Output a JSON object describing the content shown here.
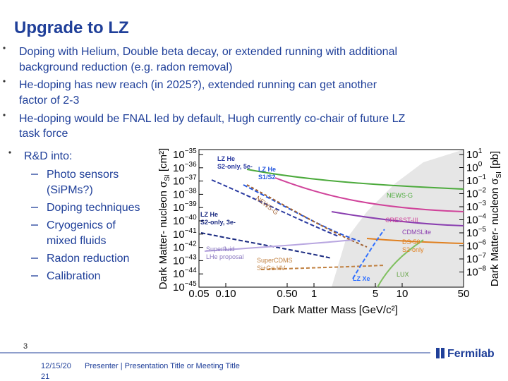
{
  "title": "Upgrade to LZ",
  "bullets": [
    [
      "Doping with Helium, Double beta decay, or extended running with additional",
      "background reduction (e.g. radon removal)"
    ],
    [
      "He-doping has new reach (in 2025?), extended running can get another",
      "factor of 2-3"
    ],
    [
      "He-doping would be FNAL led by default, Hugh currently co-chair of future LZ",
      "task force"
    ]
  ],
  "rd": {
    "heading": "R&D into:",
    "items": [
      [
        "Photo sensors",
        "(SiPMs?)"
      ],
      [
        "Doping techniques"
      ],
      [
        "Cryogenics of",
        "mixed fluids"
      ],
      [
        "Radon reduction"
      ],
      [
        "Calibration"
      ]
    ]
  },
  "plot": {
    "y_label": [
      "Dark Matter- nucleon σ",
      "SI",
      " [cm²]"
    ],
    "y2_label": [
      "Dark Matter- nucleon σ",
      "SI",
      " [pb]"
    ],
    "x_label": "Dark Matter Mass [GeV/c²]",
    "y_ticks": [
      [
        "10",
        "−35"
      ],
      [
        "10",
        "−36"
      ],
      [
        "10",
        "−37"
      ],
      [
        "10",
        "−38"
      ],
      [
        "10",
        "−39"
      ],
      [
        "10",
        "−40"
      ],
      [
        "10",
        "−41"
      ],
      [
        "10",
        "−42"
      ],
      [
        "10",
        "−43"
      ],
      [
        "10",
        "−44"
      ],
      [
        "10",
        "−45"
      ]
    ],
    "y2_ticks": [
      [
        "10",
        "1"
      ],
      [
        "10",
        "0"
      ],
      [
        "10",
        "−1"
      ],
      [
        "10",
        "−2"
      ],
      [
        "10",
        "−3"
      ],
      [
        "10",
        "−4"
      ],
      [
        "10",
        "−5"
      ],
      [
        "10",
        "−6"
      ],
      [
        "10",
        "−7"
      ],
      [
        "10",
        "−8"
      ]
    ],
    "x_ticks": [
      "0.05",
      "0.10",
      "0.50",
      "1",
      "5",
      "10",
      "50"
    ],
    "curve_labels": {
      "lz_he_5e": [
        "LZ He",
        "S2-only, 5e-"
      ],
      "lz_he_s1s2": [
        "LZ He",
        "S1/S2"
      ],
      "lz_he_3e": [
        "LZ He",
        "S2-only, 3e-"
      ],
      "news_g": "NEWS-G",
      "news_g_future": "NEWS-G",
      "cresst": "CRESST-III",
      "cdmslite": "CDMSLite",
      "ds50": [
        "DS-50",
        "S2-only"
      ],
      "superfluid": [
        "Superfluid",
        "LHe proposal"
      ],
      "supercdms": [
        "SuperCDMS",
        "Si+Ge HV"
      ],
      "lz_xe": "LZ Xe",
      "lux": "LUX"
    }
  },
  "footer": {
    "page": "3",
    "date": [
      "12/15/20",
      "21"
    ],
    "presenter": "Presenter | Presentation Title or Meeting Title",
    "logo": "Fermilab"
  }
}
